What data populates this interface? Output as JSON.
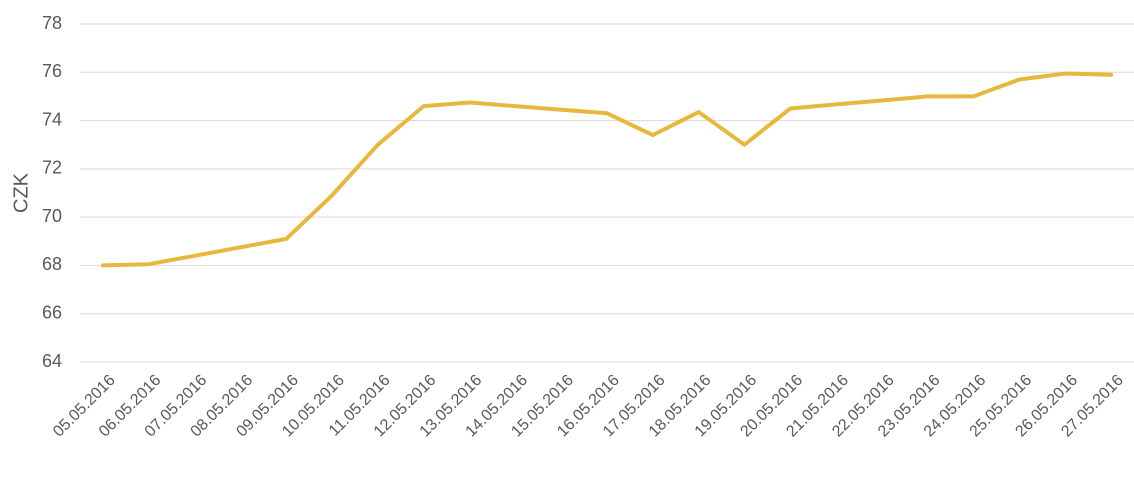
{
  "chart_data": {
    "type": "line",
    "y_label": "CZK",
    "categories": [
      "05.05.2016",
      "06.05.2016",
      "07.05.2016",
      "08.05.2016",
      "09.05.2016",
      "10.05.2016",
      "11.05.2016",
      "12.05.2016",
      "13.05.2016",
      "14.05.2016",
      "15.05.2016",
      "16.05.2016",
      "17.05.2016",
      "18.05.2016",
      "19.05.2016",
      "20.05.2016",
      "21.05.2016",
      "22.05.2016",
      "23.05.2016",
      "24.05.2016",
      "25.05.2016",
      "26.05.2016",
      "27.05.2016"
    ],
    "values": [
      68.0,
      68.05,
      68.4,
      68.75,
      69.1,
      70.9,
      73.0,
      74.6,
      74.75,
      74.6,
      74.45,
      74.3,
      73.4,
      74.35,
      73.0,
      74.5,
      74.67,
      74.83,
      75.0,
      75.0,
      75.7,
      75.95,
      75.9
    ],
    "color": "#e6b83e",
    "ylim": [
      64,
      78
    ],
    "yticks": [
      64,
      66,
      68,
      70,
      72,
      74,
      76,
      78
    ],
    "grid": true
  }
}
